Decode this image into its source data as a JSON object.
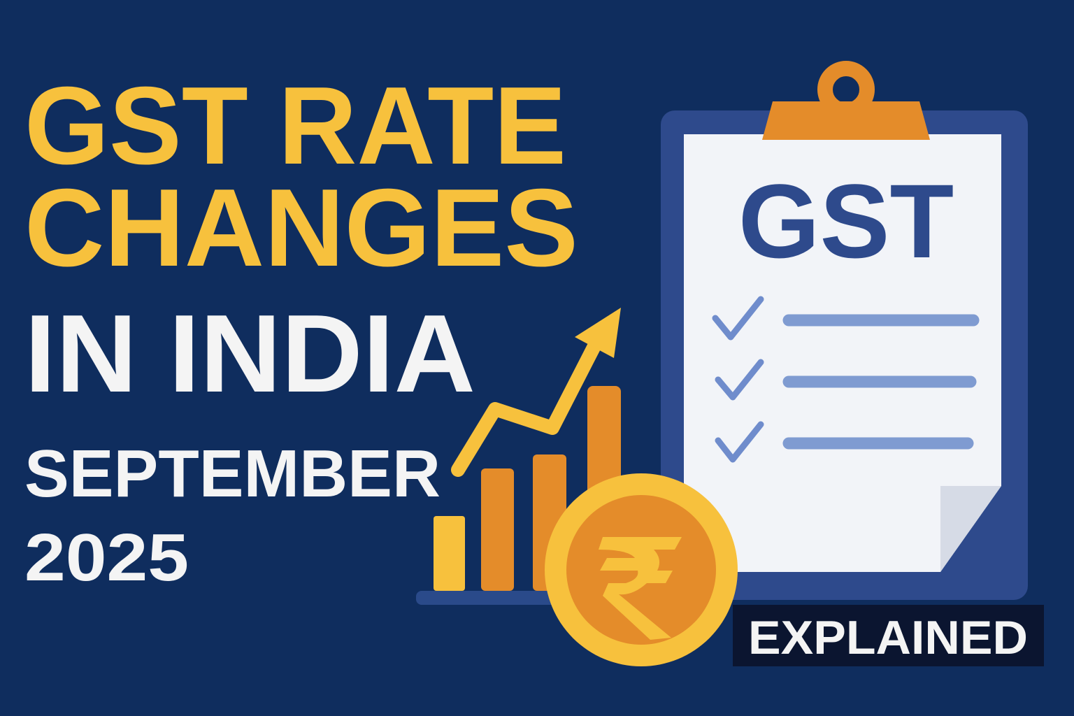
{
  "headline": {
    "lines": [
      "GST RATE",
      "CHANGES",
      "IN INDIA",
      "SEPTEMBER",
      "2025"
    ]
  },
  "clipboard": {
    "title": "GST"
  },
  "badge": {
    "label": "EXPLAINED"
  }
}
